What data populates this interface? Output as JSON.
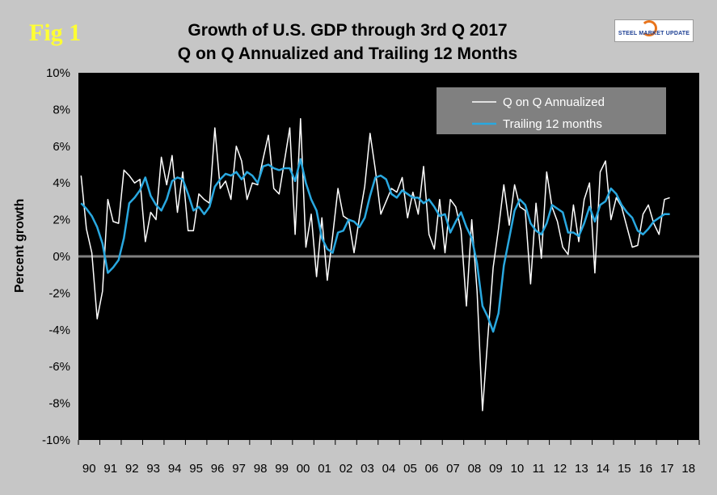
{
  "fig_label": "Fig 1",
  "logo_text": "STEEL MARKET UPDATE",
  "chart_data": {
    "type": "line",
    "title": "Growth of U.S. GDP through 3rd Q 2017",
    "subtitle": "Q on Q Annualized and Trailing 12 Months",
    "xlabel": "",
    "ylabel": "Percent growth",
    "ylim": [
      -10,
      10
    ],
    "y_ticks": [
      "10%",
      "8%",
      "6%",
      "4%",
      "2%",
      "0%",
      "-2%",
      "-4%",
      "-6%",
      "-8%",
      "-10%"
    ],
    "x_ticks": [
      "90",
      "91",
      "92",
      "93",
      "94",
      "95",
      "96",
      "97",
      "98",
      "99",
      "00",
      "01",
      "02",
      "03",
      "04",
      "05",
      "06",
      "07",
      "08",
      "09",
      "10",
      "11",
      "12",
      "13",
      "14",
      "15",
      "16",
      "17",
      "18"
    ],
    "x_start_year": 1990,
    "grid": false,
    "legend_position": "top-right",
    "colors": {
      "plot_bg": "#000000",
      "page_bg": "#c6c6c6",
      "qoq": "#ffffff",
      "trailing": "#29a8e0",
      "zero_line": "#808080",
      "legend_bg": "#808080"
    },
    "series": [
      {
        "name": "Q on Q Annualized",
        "values": [
          4.4,
          1.5,
          0.2,
          -3.4,
          -1.9,
          3.1,
          1.9,
          1.8,
          4.7,
          4.4,
          4.0,
          4.2,
          0.8,
          2.4,
          2.0,
          5.4,
          3.9,
          5.5,
          2.4,
          4.6,
          1.4,
          1.4,
          3.4,
          3.1,
          2.9,
          7.0,
          3.7,
          4.1,
          3.1,
          6.0,
          5.2,
          3.1,
          4.0,
          3.9,
          5.3,
          6.6,
          3.7,
          3.4,
          5.2,
          7.0,
          1.2,
          7.5,
          0.5,
          2.3,
          -1.1,
          2.1,
          -1.3,
          1.1,
          3.7,
          2.2,
          2.0,
          0.2,
          2.1,
          3.8,
          6.7,
          4.7,
          2.3,
          3.0,
          3.7,
          3.5,
          4.3,
          2.1,
          3.5,
          2.3,
          4.9,
          1.2,
          0.4,
          3.1,
          0.2,
          3.1,
          2.7,
          1.4,
          -2.7,
          2.0,
          -1.9,
          -8.4,
          -4.4,
          -0.6,
          1.5,
          3.9,
          1.7,
          3.9,
          2.7,
          2.5,
          -1.5,
          2.9,
          -0.1,
          4.6,
          2.7,
          1.9,
          0.5,
          0.1,
          2.8,
          0.8,
          3.1,
          4.0,
          -0.9,
          4.6,
          5.2,
          2.0,
          3.2,
          2.7,
          1.6,
          0.5,
          0.6,
          2.3,
          2.8,
          1.8,
          1.2,
          3.1,
          3.2
        ]
      },
      {
        "name": "Trailing 12 months",
        "values": [
          2.9,
          2.6,
          2.2,
          1.6,
          0.7,
          -0.9,
          -0.6,
          -0.2,
          1.0,
          2.9,
          3.2,
          3.6,
          4.3,
          3.3,
          2.8,
          2.5,
          3.1,
          4.1,
          4.3,
          4.2,
          3.4,
          2.5,
          2.7,
          2.3,
          2.7,
          3.8,
          4.2,
          4.5,
          4.4,
          4.6,
          4.2,
          4.6,
          4.4,
          4.0,
          4.9,
          5.0,
          4.8,
          4.7,
          4.8,
          4.8,
          4.1,
          5.3,
          4.0,
          3.1,
          2.5,
          1.0,
          0.4,
          0.2,
          1.3,
          1.4,
          2.0,
          1.9,
          1.6,
          2.1,
          3.3,
          4.3,
          4.4,
          4.2,
          3.4,
          3.2,
          3.6,
          3.4,
          3.2,
          3.2,
          2.9,
          3.1,
          2.7,
          2.2,
          2.3,
          1.3,
          1.9,
          2.4,
          1.6,
          1.0,
          -0.4,
          -2.7,
          -3.3,
          -4.1,
          -3.1,
          -0.5,
          1.0,
          2.5,
          3.1,
          2.8,
          1.8,
          1.4,
          1.2,
          1.8,
          2.8,
          2.6,
          2.4,
          1.3,
          1.3,
          1.1,
          1.8,
          2.7,
          1.9,
          2.8,
          3.0,
          3.7,
          3.4,
          2.8,
          2.4,
          2.1,
          1.4,
          1.2,
          1.5,
          1.9,
          2.1,
          2.3,
          2.3
        ]
      }
    ]
  }
}
